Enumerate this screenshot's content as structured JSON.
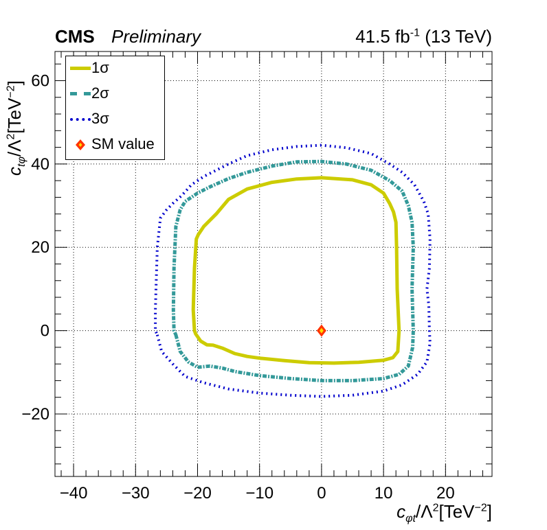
{
  "header": {
    "experiment": "CMS",
    "status": "Preliminary",
    "lumi_text": "41.5 fb",
    "lumi_sup": "-1",
    "energy": "(13 TeV)"
  },
  "axes": {
    "y_label": {
      "c": "c",
      "sub": "tφ",
      "lambda": "/Λ",
      "sup2": "2",
      "unit_open": "[TeV",
      "unit_sup": "−2",
      "unit_close": "]"
    },
    "x_label": {
      "c": "c",
      "sub": "φt",
      "lambda": "/Λ",
      "sup2": "2",
      "unit_open": "[TeV",
      "unit_sup": "−2",
      "unit_close": "]"
    }
  },
  "legend": {
    "items": [
      {
        "label": "1σ",
        "color": "#cccc00",
        "style": "solid"
      },
      {
        "label": "2σ",
        "color": "#339999",
        "style": "dash-dot"
      },
      {
        "label": "3σ",
        "color": "#0000cc",
        "style": "dotted"
      },
      {
        "label": "SM value",
        "color": "#ff3300",
        "style": "diamond"
      }
    ]
  },
  "chart_data": {
    "type": "contour",
    "xlim": [
      -43,
      27.5
    ],
    "ylim": [
      -35,
      67
    ],
    "x_ticks": [
      -40,
      -30,
      -20,
      -10,
      0,
      10,
      20
    ],
    "x_tick_labels": [
      "−40",
      "−30",
      "−20",
      "−10",
      "0",
      "10",
      "20"
    ],
    "y_ticks": [
      -20,
      0,
      20,
      40,
      60
    ],
    "y_tick_labels": [
      "−20",
      "0",
      "20",
      "40",
      "60"
    ],
    "grid": true,
    "legend_position": "top-left",
    "series": [
      {
        "name": "1σ",
        "color": "#cccc00",
        "points": [
          [
            -20.3,
            -0.8
          ],
          [
            -19.5,
            -2.5
          ],
          [
            -18.5,
            -3.4
          ],
          [
            -17.5,
            -3.5
          ],
          [
            -16,
            -4.2
          ],
          [
            -14,
            -5.5
          ],
          [
            -12,
            -6.2
          ],
          [
            -10,
            -6.6
          ],
          [
            -6,
            -7.2
          ],
          [
            -2,
            -7.7
          ],
          [
            2,
            -7.8
          ],
          [
            6,
            -7.6
          ],
          [
            10,
            -7.1
          ],
          [
            11.5,
            -6.5
          ],
          [
            12.3,
            -5
          ],
          [
            12.5,
            0
          ],
          [
            12.2,
            10
          ],
          [
            12.1,
            20
          ],
          [
            12,
            26
          ],
          [
            11.6,
            28.5
          ],
          [
            11,
            30.5
          ],
          [
            10,
            33
          ],
          [
            8,
            35
          ],
          [
            5,
            36.2
          ],
          [
            0,
            36.7
          ],
          [
            -4,
            36.4
          ],
          [
            -8,
            35.6
          ],
          [
            -12,
            34
          ],
          [
            -15,
            31.5
          ],
          [
            -17,
            28
          ],
          [
            -19,
            25
          ],
          [
            -19.9,
            23
          ],
          [
            -20.2,
            22
          ],
          [
            -20.5,
            15
          ],
          [
            -20.7,
            5
          ],
          [
            -20.5,
            0
          ]
        ]
      },
      {
        "name": "2σ",
        "color": "#339999",
        "points": [
          [
            -23.5,
            -1
          ],
          [
            -22.8,
            -5
          ],
          [
            -21.5,
            -7.5
          ],
          [
            -20,
            -8.8
          ],
          [
            -18,
            -8.5
          ],
          [
            -16,
            -9
          ],
          [
            -14,
            -9.8
          ],
          [
            -10,
            -10.8
          ],
          [
            -5,
            -11.5
          ],
          [
            0,
            -12
          ],
          [
            5,
            -12
          ],
          [
            10,
            -11.5
          ],
          [
            12.5,
            -10.5
          ],
          [
            14,
            -8.5
          ],
          [
            14.7,
            -4
          ],
          [
            14.8,
            0
          ],
          [
            14.6,
            10
          ],
          [
            14.8,
            20
          ],
          [
            14.6,
            26
          ],
          [
            14,
            30
          ],
          [
            13,
            33.5
          ],
          [
            11,
            36
          ],
          [
            8,
            38.5
          ],
          [
            4,
            40
          ],
          [
            0,
            40.6
          ],
          [
            -4,
            40.5
          ],
          [
            -8,
            39.5
          ],
          [
            -12,
            38
          ],
          [
            -15,
            36.5
          ],
          [
            -18,
            34.5
          ],
          [
            -20,
            33
          ],
          [
            -22,
            31
          ],
          [
            -22.8,
            29
          ],
          [
            -23.5,
            25
          ],
          [
            -23.8,
            15
          ],
          [
            -23.9,
            5
          ],
          [
            -23.8,
            0
          ]
        ]
      },
      {
        "name": "3σ",
        "color": "#0000cc",
        "points": [
          [
            -26.5,
            -1
          ],
          [
            -25.8,
            -5
          ],
          [
            -24,
            -8
          ],
          [
            -22,
            -11
          ],
          [
            -19,
            -12.5
          ],
          [
            -15,
            -14
          ],
          [
            -10,
            -15
          ],
          [
            -5,
            -15.5
          ],
          [
            0,
            -15.8
          ],
          [
            5,
            -15.5
          ],
          [
            10,
            -14.5
          ],
          [
            13,
            -13
          ],
          [
            15.5,
            -10.5
          ],
          [
            17,
            -7.5
          ],
          [
            17.5,
            -3
          ],
          [
            17.4,
            0
          ],
          [
            17.3,
            6
          ],
          [
            17,
            10
          ],
          [
            17.4,
            15
          ],
          [
            17.5,
            22
          ],
          [
            17.2,
            28
          ],
          [
            16.5,
            31
          ],
          [
            15,
            35
          ],
          [
            13,
            38
          ],
          [
            11,
            40
          ],
          [
            8,
            42.5
          ],
          [
            4,
            43.9
          ],
          [
            0,
            44.5
          ],
          [
            -4,
            44.2
          ],
          [
            -8,
            43.4
          ],
          [
            -12,
            42
          ],
          [
            -15,
            40
          ],
          [
            -17,
            38.5
          ],
          [
            -19,
            37
          ],
          [
            -21,
            35
          ],
          [
            -22.5,
            32.5
          ],
          [
            -24,
            30.5
          ],
          [
            -25,
            29
          ],
          [
            -26,
            27
          ],
          [
            -26.5,
            20
          ],
          [
            -26.7,
            10
          ],
          [
            -26.8,
            5
          ],
          [
            -26.8,
            0
          ]
        ]
      }
    ],
    "points": [
      {
        "name": "SM value",
        "x": 0,
        "y": 0,
        "color": "#ff3300"
      }
    ]
  }
}
